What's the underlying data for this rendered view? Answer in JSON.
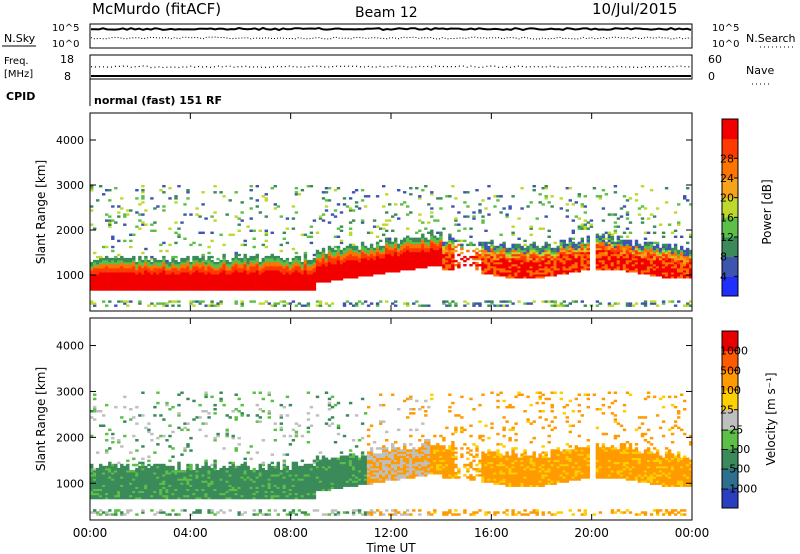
{
  "header": {
    "station": "McMurdo (fitACF)",
    "beam": "Beam 12",
    "date": "10/Jul/2015"
  },
  "summary_panel": {
    "nsky_label": "N.Sky",
    "nsky_ticks": [
      "10^5",
      "10^0"
    ],
    "nsearch_label": "N.Search",
    "nsearch_ticks": [
      "10^5",
      "10^0"
    ],
    "freq_label_line1": "Freq.",
    "freq_label_line2": "[MHz]",
    "freq_ticks": [
      "18",
      "8"
    ],
    "nave_label": "Nave",
    "nave_ticks": [
      "60",
      "0"
    ],
    "cpid_label": "CPID",
    "cpid_text": "normal (fast) 151 RF"
  },
  "chart_data": [
    {
      "type": "heatmap",
      "name": "power-panel",
      "xlabel": "Time UT",
      "ylabel": "Slant Range [km]",
      "xlim": [
        0,
        24
      ],
      "ylim": [
        200,
        4600
      ],
      "yticks": [
        "1000",
        "2000",
        "3000",
        "4000"
      ],
      "xticks": [
        "00:00",
        "04:00",
        "08:00",
        "12:00",
        "16:00",
        "20:00",
        "00:00"
      ],
      "colorbar": {
        "label": "Power [dB]",
        "ticks": [
          "4",
          "8",
          "12",
          "16",
          "20",
          "24",
          "28"
        ],
        "colors": [
          "#1e2fff",
          "#3e55b0",
          "#3a8a5a",
          "#5cbf47",
          "#bfd82d",
          "#f5a31a",
          "#ff7300",
          "#ff3a00",
          "#f20000"
        ]
      }
    },
    {
      "type": "heatmap",
      "name": "velocity-panel",
      "xlabel": "Time UT",
      "ylabel": "Slant Range [km]",
      "xlim": [
        0,
        24
      ],
      "ylim": [
        200,
        4600
      ],
      "yticks": [
        "1000",
        "2000",
        "3000",
        "4000"
      ],
      "xticks": [
        "00:00",
        "04:00",
        "08:00",
        "12:00",
        "16:00",
        "20:00",
        "00:00"
      ],
      "colorbar": {
        "label": "Velocity [m s⁻¹]",
        "ticks": [
          "1000",
          "500",
          "100",
          "25",
          "−25",
          "−100",
          "−500",
          "−1000"
        ],
        "colors": [
          "#2a3fc0",
          "#2e6e8e",
          "#3a8a5a",
          "#5cbf47",
          "#bfbfbf",
          "#ffd000",
          "#ff9a00",
          "#ff5a00",
          "#e80000"
        ]
      }
    }
  ]
}
